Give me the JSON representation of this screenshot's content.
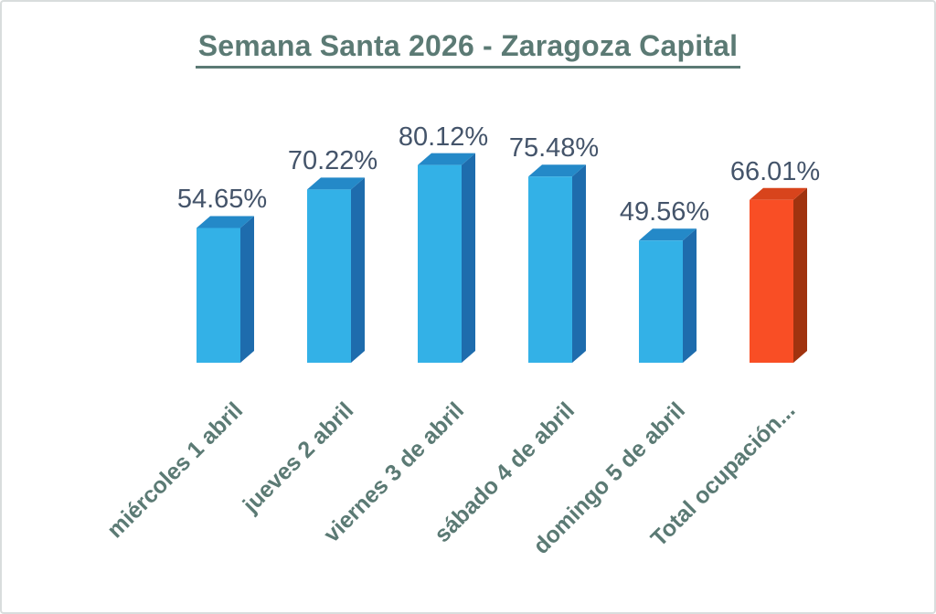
{
  "page": {
    "background": "#FFFFFF",
    "border_color": "#D9DDDD"
  },
  "chart_data": {
    "type": "bar",
    "style": "3d-box",
    "title": "Semana Santa 2026 - Zaragoza Capital",
    "categories": [
      "miércoles 1 abril",
      "jueves 2 abril",
      "viernes 3 de abril",
      "sábado 4 de abril",
      "domingo 5 de abril",
      "Total ocupación..."
    ],
    "values": [
      54.65,
      70.22,
      80.12,
      75.48,
      49.56,
      66.01
    ],
    "data_labels": [
      "54.65%",
      "70.22%",
      "80.12%",
      "75.48%",
      "49.56%",
      "66.01%"
    ],
    "xlabel": "",
    "ylabel": "",
    "ylim": [
      0,
      100
    ],
    "grid": false,
    "legend": false,
    "axis_lines": false,
    "category_label_rotation_deg": 45,
    "highlight_index": 5,
    "bar_colors": {
      "default": {
        "front": "#33B1E7",
        "top": "#2489C8",
        "side": "#1E6CAD"
      },
      "highlight": {
        "front": "#F94E25",
        "top": "#D8441C",
        "side": "#A0330F"
      }
    },
    "title_color": "#5B7A74",
    "category_label_color": "#5B7A74",
    "data_label_color": "#44546A"
  }
}
